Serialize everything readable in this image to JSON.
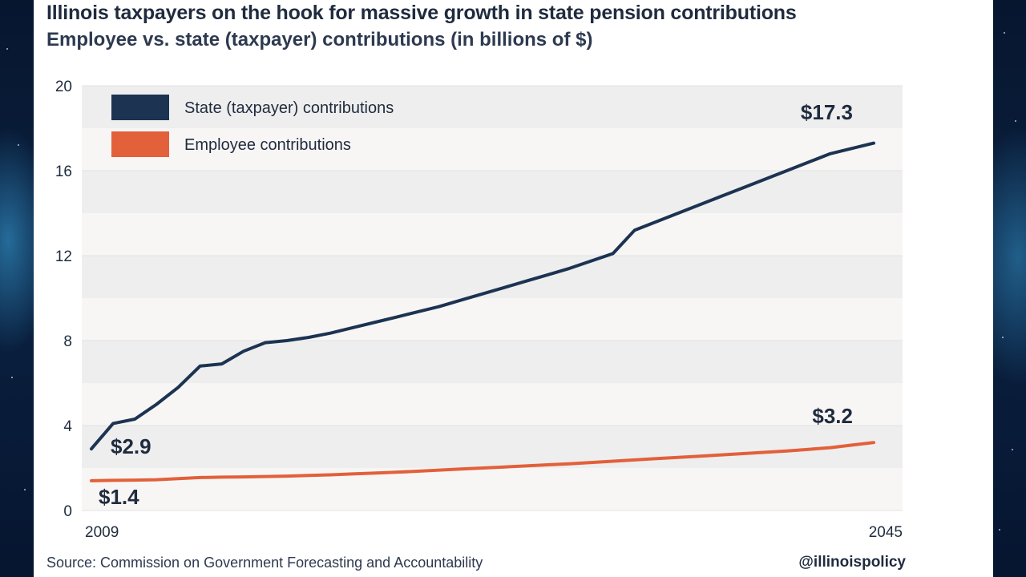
{
  "header": {
    "title": "Illinois taxpayers on the hook for massive growth in state pension contributions",
    "subtitle": "Employee vs. state (taxpayer) contributions (in billions of $)"
  },
  "footer": {
    "source": "Source: Commission on Government Forecasting and Accountability",
    "handle": "@illinoispolicy"
  },
  "colors": {
    "state": "#1c3352",
    "employee": "#e2603a",
    "band_light": "#f8f6f5",
    "band_dark": "#eeeeee",
    "text": "#1f2b3e"
  },
  "chart_data": {
    "type": "line",
    "title": "Illinois taxpayers on the hook for massive growth in state pension contributions",
    "subtitle": "Employee vs. state (taxpayer) contributions (in billions of $)",
    "xlabel": "",
    "ylabel": "",
    "xlim": [
      2009,
      2045
    ],
    "ylim": [
      0,
      20
    ],
    "yticks": [
      0,
      4,
      8,
      12,
      16,
      20
    ],
    "xtick_labels": [
      "2009",
      "2045"
    ],
    "grid": true,
    "legend_position": "top-left",
    "x": [
      2009,
      2010,
      2011,
      2012,
      2013,
      2014,
      2015,
      2016,
      2017,
      2018,
      2019,
      2020,
      2021,
      2022,
      2023,
      2024,
      2025,
      2026,
      2027,
      2028,
      2029,
      2030,
      2031,
      2032,
      2033,
      2034,
      2035,
      2036,
      2037,
      2038,
      2039,
      2040,
      2041,
      2042,
      2043,
      2044,
      2045
    ],
    "series": [
      {
        "name": "State (taxpayer) contributions",
        "values": [
          2.9,
          4.1,
          4.3,
          5.0,
          5.8,
          6.8,
          6.9,
          7.5,
          7.9,
          8.0,
          8.15,
          8.35,
          8.6,
          8.85,
          9.1,
          9.35,
          9.6,
          9.9,
          10.2,
          10.5,
          10.8,
          11.1,
          11.4,
          11.75,
          12.1,
          13.2,
          13.6,
          14.0,
          14.4,
          14.8,
          15.2,
          15.6,
          16.0,
          16.4,
          16.8,
          17.05,
          17.3
        ]
      },
      {
        "name": "Employee contributions",
        "values": [
          1.4,
          1.42,
          1.43,
          1.45,
          1.5,
          1.55,
          1.57,
          1.58,
          1.6,
          1.62,
          1.65,
          1.68,
          1.72,
          1.76,
          1.8,
          1.85,
          1.9,
          1.95,
          2.0,
          2.05,
          2.1,
          2.15,
          2.2,
          2.26,
          2.32,
          2.38,
          2.44,
          2.5,
          2.56,
          2.62,
          2.68,
          2.74,
          2.8,
          2.88,
          2.96,
          3.08,
          3.2
        ]
      }
    ],
    "annotations": [
      {
        "text": "$2.9",
        "series": "State (taxpayer) contributions",
        "x": 2009,
        "y": 2.9
      },
      {
        "text": "$17.3",
        "series": "State (taxpayer) contributions",
        "x": 2045,
        "y": 17.3
      },
      {
        "text": "$1.4",
        "series": "Employee contributions",
        "x": 2009,
        "y": 1.4
      },
      {
        "text": "$3.2",
        "series": "Employee contributions",
        "x": 2045,
        "y": 3.2
      }
    ]
  }
}
